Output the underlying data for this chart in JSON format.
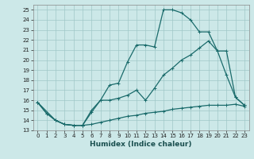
{
  "xlabel": "Humidex (Indice chaleur)",
  "background_color": "#cce8e8",
  "grid_color": "#a0c8c8",
  "line_color": "#1a6b6b",
  "xlim": [
    -0.5,
    23.5
  ],
  "ylim": [
    13,
    25.5
  ],
  "yticks": [
    13,
    14,
    15,
    16,
    17,
    18,
    19,
    20,
    21,
    22,
    23,
    24,
    25
  ],
  "xticks": [
    0,
    1,
    2,
    3,
    4,
    5,
    6,
    7,
    8,
    9,
    10,
    11,
    12,
    13,
    14,
    15,
    16,
    17,
    18,
    19,
    20,
    21,
    22,
    23
  ],
  "line1_x": [
    0,
    1,
    2,
    3,
    4,
    5,
    6,
    7,
    8,
    9,
    10,
    11,
    12,
    13,
    14,
    15,
    16,
    17,
    18,
    19,
    20,
    21,
    22,
    23
  ],
  "line1_y": [
    15.8,
    14.7,
    14.0,
    13.6,
    13.5,
    13.5,
    13.6,
    13.8,
    14.0,
    14.2,
    14.4,
    14.5,
    14.7,
    14.8,
    14.9,
    15.1,
    15.2,
    15.3,
    15.4,
    15.5,
    15.5,
    15.5,
    15.6,
    15.4
  ],
  "line2_x": [
    0,
    1,
    2,
    3,
    4,
    5,
    6,
    7,
    8,
    9,
    10,
    11,
    12,
    13,
    14,
    15,
    16,
    17,
    18,
    19,
    20,
    21,
    22,
    23
  ],
  "line2_y": [
    15.8,
    14.7,
    14.0,
    13.6,
    13.5,
    13.5,
    15.0,
    16.0,
    17.5,
    17.7,
    19.8,
    21.5,
    21.5,
    21.3,
    25.0,
    25.0,
    24.7,
    24.0,
    22.8,
    22.8,
    20.9,
    18.5,
    16.3,
    15.5
  ],
  "line3_x": [
    0,
    2,
    3,
    4,
    5,
    6,
    7,
    8,
    9,
    10,
    11,
    12,
    13,
    14,
    15,
    16,
    17,
    18,
    19,
    20,
    21,
    22,
    23
  ],
  "line3_y": [
    15.8,
    14.0,
    13.6,
    13.5,
    13.5,
    14.8,
    16.0,
    16.0,
    16.2,
    16.5,
    17.0,
    16.0,
    17.2,
    18.5,
    19.2,
    20.0,
    20.5,
    21.2,
    21.9,
    20.9,
    20.9,
    16.3,
    15.5
  ]
}
